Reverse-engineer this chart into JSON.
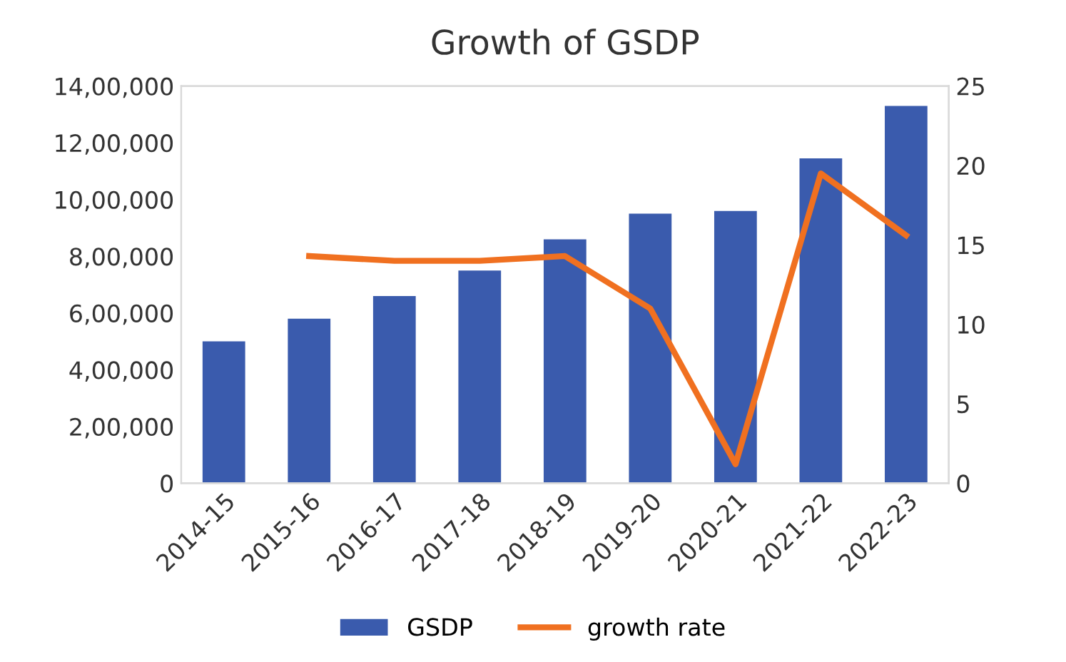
{
  "chart_data": {
    "type": "bar",
    "title": "Growth of GSDP",
    "categories": [
      "2014-15",
      "2015-16",
      "2016-17",
      "2017-18",
      "2018-19",
      "2019-20",
      "2020-21",
      "2021-22",
      "2022-23"
    ],
    "series": [
      {
        "name": "GSDP",
        "color": "#3a5bad",
        "values": [
          500000,
          580000,
          660000,
          750000,
          860000,
          950000,
          960000,
          1145000,
          1330000
        ]
      },
      {
        "name": "growth rate",
        "type": "line",
        "axis": "y2",
        "color": "#f07020",
        "values": [
          null,
          14.3,
          14.0,
          14.0,
          14.3,
          11.0,
          1.2,
          19.5,
          15.6
        ]
      }
    ],
    "ylim": [
      0,
      1400000
    ],
    "yticks": [
      0,
      {
        "value": 200000,
        "label": "2,00,000"
      },
      {
        "value": 400000,
        "label": "4,00,000"
      },
      {
        "value": 600000,
        "label": "6,00,000"
      },
      {
        "value": 800000,
        "label": "8,00,000"
      },
      {
        "value": 1000000,
        "label": "10,00,000"
      },
      {
        "value": 1200000,
        "label": "12,00,000"
      },
      {
        "value": 1400000,
        "label": "14,00,000"
      }
    ],
    "y2lim": [
      0,
      25
    ],
    "y2ticks": [
      0,
      5,
      10,
      15,
      20,
      25
    ],
    "grid": false,
    "legend": "bottom",
    "marker": "none",
    "line_style": "solid"
  }
}
